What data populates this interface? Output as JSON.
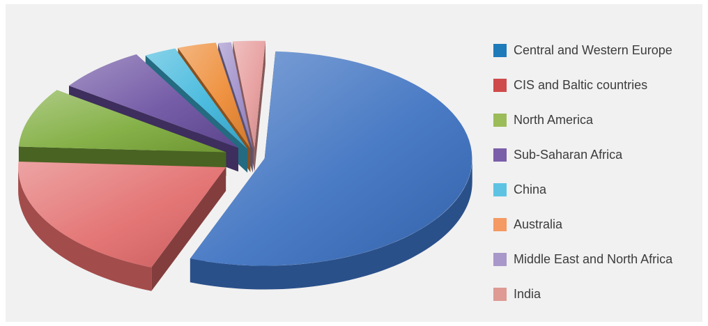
{
  "chart_data": {
    "type": "pie",
    "title": "",
    "categories": [
      "Central and Western Europe",
      "CIS and Baltic countries",
      "North America",
      "Sub-Saharan Africa",
      "China",
      "Australia",
      "Middle East and North Africa",
      "India"
    ],
    "values": [
      55,
      20,
      9,
      7,
      2.5,
      3,
      1,
      2.5
    ],
    "colors": [
      "#3a6fc0",
      "#e26a6a",
      "#7dab3a",
      "#6a4fa0",
      "#3eb6dc",
      "#ee8a32",
      "#9c8cc8",
      "#e69a9a"
    ],
    "legend_colors": [
      "#1f7ab9",
      "#cf4b4b",
      "#9cbc59",
      "#7a5ea8",
      "#5ec3e3",
      "#f49a62",
      "#a897c9",
      "#de9a93"
    ],
    "legend_position": "right",
    "exploded": true,
    "style": "3d"
  }
}
